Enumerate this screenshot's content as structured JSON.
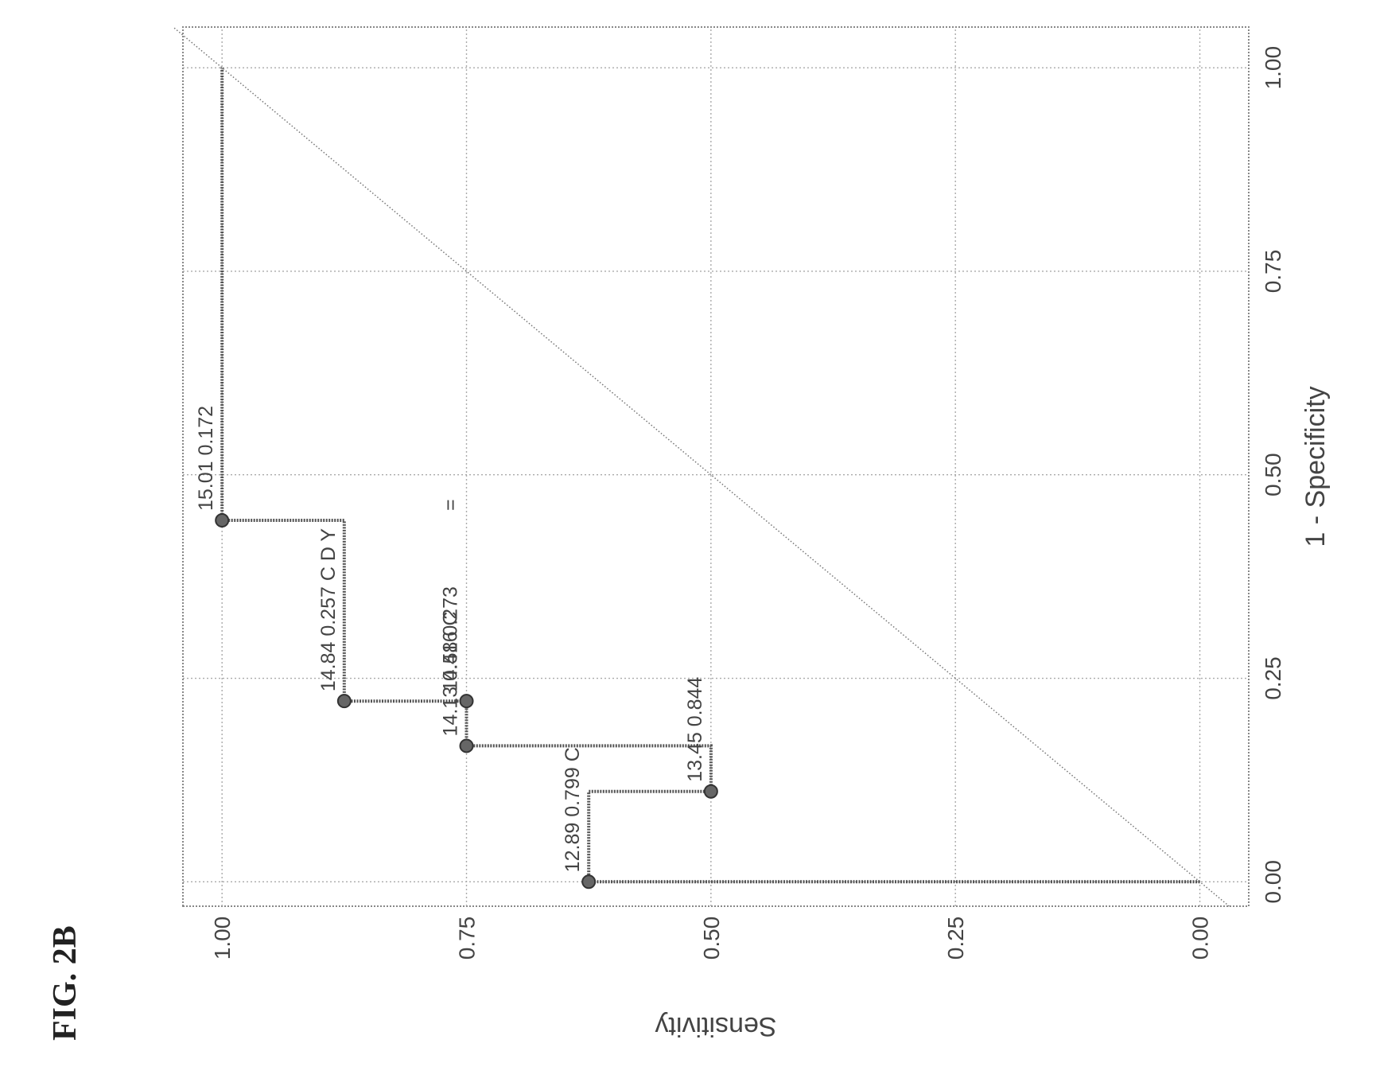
{
  "figure_label": "FIG. 2B",
  "chart_data": {
    "type": "line",
    "xlabel": "1 - Specificity",
    "ylabel": "Sensitivity",
    "xlim": [
      -0.03,
      1.05
    ],
    "ylim": [
      -0.05,
      1.04
    ],
    "x_ticks": [
      0.0,
      0.25,
      0.5,
      0.75,
      1.0
    ],
    "x_tick_labels": [
      "0.00",
      "0.25",
      "0.50",
      "0.75",
      "1.00"
    ],
    "y_ticks": [
      0.0,
      0.25,
      0.5,
      0.75,
      1.0
    ],
    "y_tick_labels": [
      "0.00",
      "0.25",
      "0.50",
      "0.75",
      "1.00"
    ],
    "grid": true,
    "series": [
      {
        "type": "step",
        "points": [
          {
            "x": 0.0,
            "y": 0.0
          },
          {
            "x": 0.0,
            "y": 0.625
          },
          {
            "x": 0.111,
            "y": 0.625
          },
          {
            "x": 0.111,
            "y": 0.5
          },
          {
            "x": 0.167,
            "y": 0.5
          },
          {
            "x": 0.167,
            "y": 0.75
          },
          {
            "x": 0.222,
            "y": 0.75
          },
          {
            "x": 0.222,
            "y": 0.875
          },
          {
            "x": 0.444,
            "y": 0.875
          },
          {
            "x": 0.444,
            "y": 1.0
          },
          {
            "x": 1.0,
            "y": 1.0
          }
        ]
      },
      {
        "type": "reference-diagonal",
        "points": [
          {
            "x": -0.03,
            "y": -0.03
          },
          {
            "x": 1.05,
            "y": 1.05
          }
        ]
      }
    ],
    "marked_points": [
      {
        "x": 0.0,
        "y": 0.625,
        "label": "12.89 0.799 C"
      },
      {
        "x": 0.111,
        "y": 0.5,
        "label": "13.45 0.844"
      },
      {
        "x": 0.167,
        "y": 0.75,
        "label": "14.13 0.416 C"
      },
      {
        "x": 0.222,
        "y": 0.75,
        "label": "14.58 0.273"
      },
      {
        "x": 0.222,
        "y": 0.875,
        "label": "14.84 0.257 C D Y"
      },
      {
        "x": 0.444,
        "y": 1.0,
        "label": "15.01 0.172"
      }
    ],
    "annotations": [
      {
        "text": "=",
        "x": 0.444,
        "y": 0.75
      }
    ]
  }
}
